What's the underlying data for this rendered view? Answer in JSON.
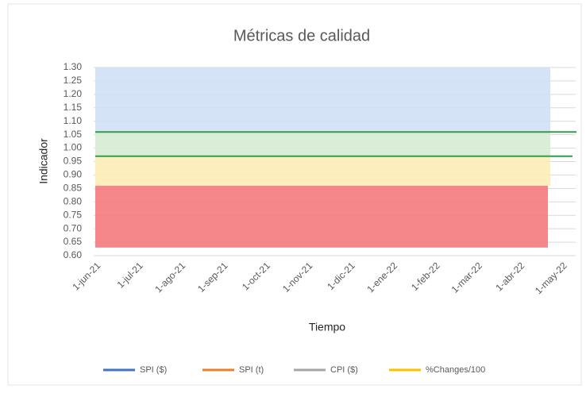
{
  "chart_data": {
    "type": "line",
    "title": "Métricas de calidad",
    "y_label": "Indicador",
    "x_label": "Tiempo",
    "categories": [
      "1-jun-21",
      "1-jul-21",
      "1-ago-21",
      "1-sep-21",
      "1-oct-21",
      "1-nov-21",
      "1-dic-21",
      "1-ene-22",
      "1-feb-22",
      "1-mar-22",
      "1-abr-22",
      "1-may-22"
    ],
    "series": [
      {
        "name": "SPI ($)",
        "color": "#4472c4",
        "values": [
          null,
          null,
          null,
          null,
          null,
          null,
          null,
          null,
          null,
          null,
          null,
          null
        ]
      },
      {
        "name": "SPI (t)",
        "color": "#ed7d31",
        "values": [
          null,
          null,
          null,
          null,
          null,
          null,
          null,
          null,
          null,
          null,
          null,
          null
        ]
      },
      {
        "name": "CPI ($)",
        "color": "#a5a5a5",
        "values": [
          null,
          null,
          null,
          null,
          null,
          null,
          null,
          null,
          null,
          null,
          null,
          null
        ]
      },
      {
        "name": "%Changes/100",
        "color": "#ffc000",
        "values": [
          null,
          null,
          null,
          null,
          null,
          null,
          null,
          null,
          null,
          null,
          null,
          null
        ]
      }
    ],
    "bands": [
      {
        "range": [
          1.06,
          1.3
        ],
        "color": "#cfe0f4"
      },
      {
        "range": [
          0.97,
          1.06
        ],
        "color": "#d6ecd3"
      },
      {
        "range": [
          0.86,
          0.97
        ],
        "color": "#fdecb6"
      },
      {
        "range": [
          0.63,
          0.86
        ],
        "color": "#f47a7d"
      }
    ],
    "reference_lines": [
      {
        "value": 1.06,
        "color": "#2e9e4a"
      },
      {
        "value": 0.97,
        "color": "#2e9e4a"
      }
    ],
    "ylim": [
      0.6,
      1.3
    ],
    "yticks": [
      {
        "value": 0.6,
        "label": "0.60"
      },
      {
        "value": 0.65,
        "label": "0.65"
      },
      {
        "value": 0.7,
        "label": "0.70"
      },
      {
        "value": 0.75,
        "label": "0.75"
      },
      {
        "value": 0.8,
        "label": "0.80"
      },
      {
        "value": 0.85,
        "label": "0.85"
      },
      {
        "value": 0.9,
        "label": "0.90"
      },
      {
        "value": 0.95,
        "label": "0.95"
      },
      {
        "value": 1.0,
        "label": "1.00"
      },
      {
        "value": 1.05,
        "label": "1.05"
      },
      {
        "value": 1.1,
        "label": "1.10"
      },
      {
        "value": 1.15,
        "label": "1.15"
      },
      {
        "value": 1.2,
        "label": "1.20"
      },
      {
        "value": 1.25,
        "label": "1.25"
      },
      {
        "value": 1.3,
        "label": "1.30"
      }
    ],
    "grid": true,
    "legend": "bottom"
  }
}
